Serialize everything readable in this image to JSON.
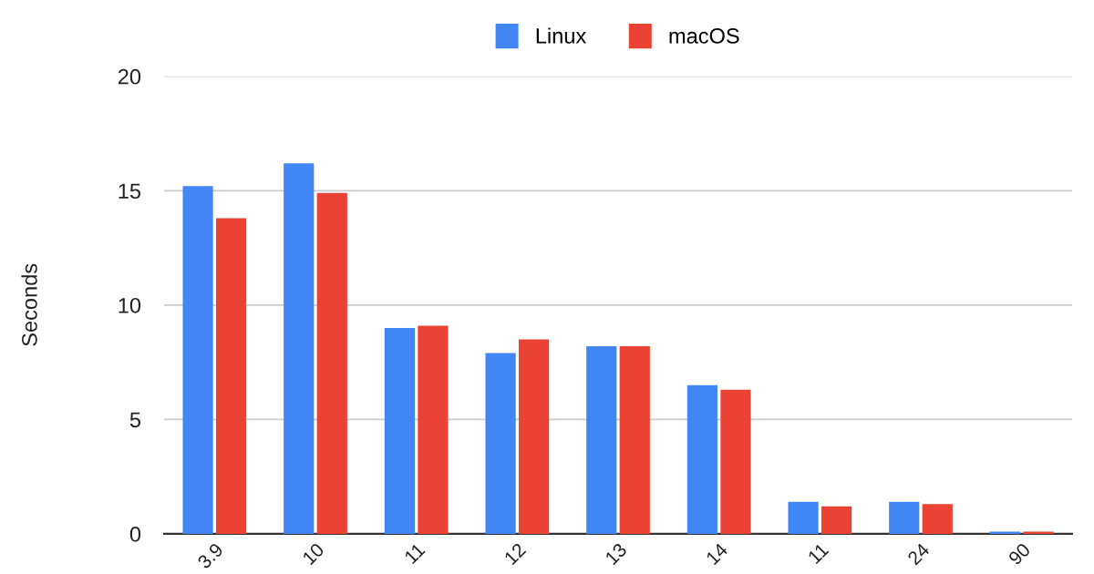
{
  "chart_data": {
    "type": "bar",
    "ylabel": "Seconds",
    "categories": [
      "3.9",
      "10",
      "11",
      "12",
      "13",
      "14",
      "11",
      "24",
      "90"
    ],
    "series": [
      {
        "name": "Linux",
        "color": "#4285f4",
        "values": [
          15.2,
          16.2,
          9.0,
          7.9,
          8.2,
          6.5,
          1.4,
          1.4,
          0.1
        ]
      },
      {
        "name": "macOS",
        "color": "#ea4335",
        "values": [
          13.8,
          14.9,
          9.1,
          8.5,
          8.2,
          6.3,
          1.2,
          1.3,
          0.1
        ]
      }
    ],
    "ylim": [
      0,
      20
    ],
    "yticks": [
      0,
      5,
      10,
      15,
      20
    ],
    "grid": "y",
    "legend": "top"
  }
}
